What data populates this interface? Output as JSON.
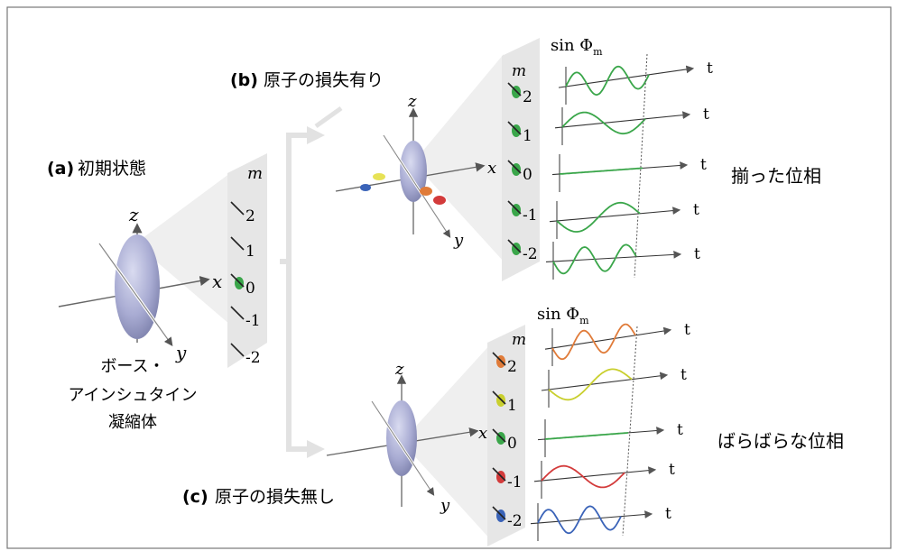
{
  "panels": {
    "a": {
      "tag": "(a)",
      "title": "初期状態",
      "caption_lines": [
        "ボース・",
        "アインシュタイン",
        "凝縮体"
      ]
    },
    "b": {
      "tag": "(b)",
      "title": "原子の損失有り",
      "side_label": "揃った位相"
    },
    "c": {
      "tag": "(c)",
      "title": "原子の損失無し",
      "side_label": "ばらばらな位相"
    }
  },
  "axes": {
    "x": "x",
    "y": "y",
    "z": "z"
  },
  "m_label": "m",
  "m_values": [
    "2",
    "1",
    "0",
    "-1",
    "-2"
  ],
  "sin_label": "sin Φ",
  "sin_subscript": "m",
  "t_label": "t",
  "colors": {
    "ellipsoid": "#a9acd3",
    "green": "#3aa64a",
    "orange": "#e07b39",
    "yellow": "#c9cf2e",
    "red": "#d33b3b",
    "blue": "#3a63b8",
    "screen": "#e6e6e6"
  },
  "waves": {
    "b": [
      {
        "m": "2",
        "cycles": 2,
        "color": "green"
      },
      {
        "m": "1",
        "cycles": 1,
        "color": "green"
      },
      {
        "m": "0",
        "cycles": 0,
        "color": "green"
      },
      {
        "m": "-1",
        "cycles": 1,
        "color": "green"
      },
      {
        "m": "-2",
        "cycles": 2,
        "color": "green"
      }
    ],
    "c": [
      {
        "m": "2",
        "cycles": 2,
        "color": "orange"
      },
      {
        "m": "1",
        "cycles": 1,
        "color": "yellow"
      },
      {
        "m": "0",
        "cycles": 0,
        "color": "green"
      },
      {
        "m": "-1",
        "cycles": 1,
        "color": "red"
      },
      {
        "m": "-2",
        "cycles": 2,
        "color": "blue"
      }
    ]
  }
}
